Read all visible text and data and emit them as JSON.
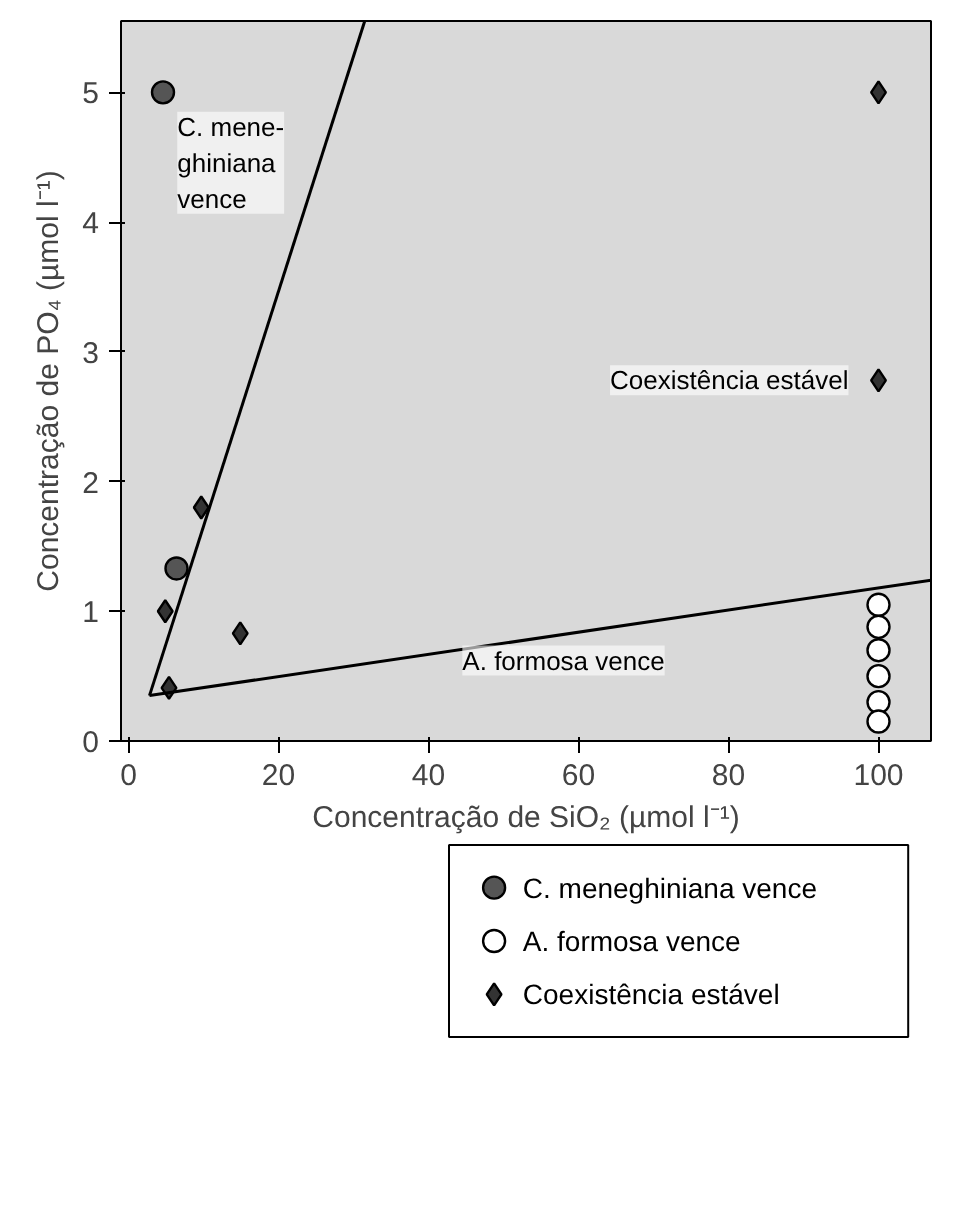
{
  "chart_data": {
    "type": "scatter",
    "xlabel": "Concentração de SiO₂ (µmol l⁻¹)",
    "ylabel": "Concentração de PO₄ (µmol l⁻¹)",
    "xlim": [
      -1,
      107
    ],
    "ylim": [
      0,
      5.55
    ],
    "xticks": [
      0,
      20,
      40,
      60,
      80,
      100
    ],
    "yticks": [
      0,
      1,
      2,
      3,
      4,
      5
    ],
    "series": [
      {
        "name": "C. meneghiniana vence",
        "color": "#555555",
        "marker": "circle",
        "x": [
          4.6,
          6.4
        ],
        "values": [
          5.0,
          1.33
        ]
      },
      {
        "name": "A. formosa vence",
        "color": "#ffffff",
        "marker": "circle",
        "x": [
          100,
          100,
          100,
          100,
          100,
          100
        ],
        "values": [
          1.05,
          0.88,
          0.7,
          0.5,
          0.3,
          0.15
        ]
      },
      {
        "name": "Coexistência estável",
        "color": "#333333",
        "marker": "diamond",
        "x": [
          4.9,
          9.7,
          14.9,
          5.4,
          100,
          100
        ],
        "values": [
          1.0,
          1.8,
          0.83,
          0.41,
          5.0,
          2.78
        ]
      },
      {
        "type": "line",
        "color": "#000000",
        "x": [
          2.8,
          31.5
        ],
        "values": [
          0.35,
          5.55
        ]
      },
      {
        "type": "line",
        "color": "#000000",
        "x": [
          2.8,
          107
        ],
        "values": [
          0.35,
          1.24
        ]
      }
    ],
    "annotations": [
      "C. mene-\nghiniana\nvence",
      "Coexistência estável",
      "A. formosa vence"
    ],
    "legend": "bottom",
    "grid": false
  }
}
